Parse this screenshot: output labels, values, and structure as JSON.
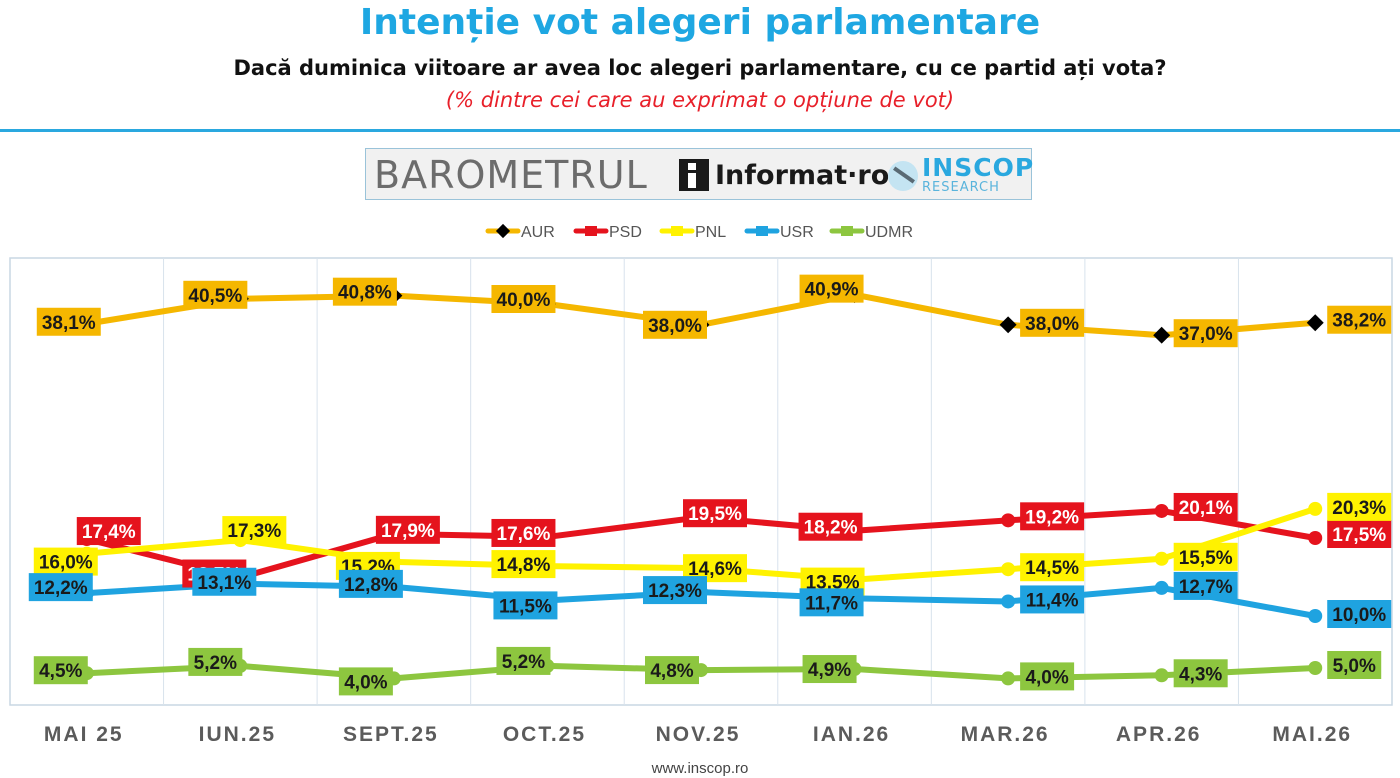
{
  "header": {
    "title": "Intenție vot alegeri parlamentare",
    "subtitle": "Dacă duminica viitoare ar avea loc alegeri parlamentare, cu ce partid ați vota?",
    "note": "(% dintre cei care au exprimat o opțiune de vot)"
  },
  "banner": {
    "barometrul": "BAROMETRUL",
    "informat": "Informat·ro",
    "inscop": "INSCOP",
    "research": "RESEARCH"
  },
  "footer": {
    "url": "www.inscop.ro"
  },
  "chart_data": {
    "type": "line",
    "title": "Intenție vot alegeri parlamentare",
    "categories": [
      "MAI 25",
      "IUN.25",
      "SEPT.25",
      "OCT.25",
      "NOV.25",
      "IAN.26",
      "MAR.26",
      "APR.26",
      "MAI.26"
    ],
    "ylim": [
      0,
      45
    ],
    "legend_position": "top",
    "grid": "vertical",
    "series": [
      {
        "name": "AUR",
        "color": "#f5b700",
        "marker_color": "#000000",
        "values": [
          38.1,
          40.5,
          40.8,
          40.0,
          38.0,
          40.9,
          38.0,
          37.0,
          38.2
        ],
        "labels": [
          "38,1%",
          "40,5%",
          "40,8%",
          "40,0%",
          "38,0%",
          "40,9%",
          "38,0%",
          "37,0%",
          "38,2%"
        ]
      },
      {
        "name": "PSD",
        "color": "#e5131d",
        "marker_color": "#e5131d",
        "values": [
          17.4,
          13.7,
          17.9,
          17.6,
          19.5,
          18.2,
          19.2,
          20.1,
          17.5
        ],
        "labels": [
          "17,4%",
          "13,7%",
          "17,9%",
          "17,6%",
          "19,5%",
          "18,2%",
          "19,2%",
          "20,1%",
          "17,5%"
        ]
      },
      {
        "name": "PNL",
        "color": "#fff200",
        "marker_color": "#fff200",
        "values": [
          16.0,
          17.3,
          15.2,
          14.8,
          14.6,
          13.5,
          14.5,
          15.5,
          20.3
        ],
        "labels": [
          "16,0%",
          "17,3%",
          "15,2%",
          "14,8%",
          "14,6%",
          "13,5%",
          "14,5%",
          "15,5%",
          "20,3%"
        ]
      },
      {
        "name": "USR",
        "color": "#1fa3e0",
        "marker_color": "#1fa3e0",
        "values": [
          12.2,
          13.1,
          12.8,
          11.5,
          12.3,
          11.7,
          11.4,
          12.7,
          10.0
        ],
        "labels": [
          "12,2%",
          "13,1%",
          "12,8%",
          "11,5%",
          "12,3%",
          "11,7%",
          "11,4%",
          "12,7%",
          "10,0%"
        ]
      },
      {
        "name": "UDMR",
        "color": "#8dc63f",
        "marker_color": "#8dc63f",
        "values": [
          4.5,
          5.2,
          4.0,
          5.2,
          4.8,
          4.9,
          4.0,
          4.3,
          5.0
        ],
        "labels": [
          "4,5%",
          "5,2%",
          "4,0%",
          "5,2%",
          "4,8%",
          "4,9%",
          "4,0%",
          "4,3%",
          "5,0%"
        ]
      }
    ]
  }
}
